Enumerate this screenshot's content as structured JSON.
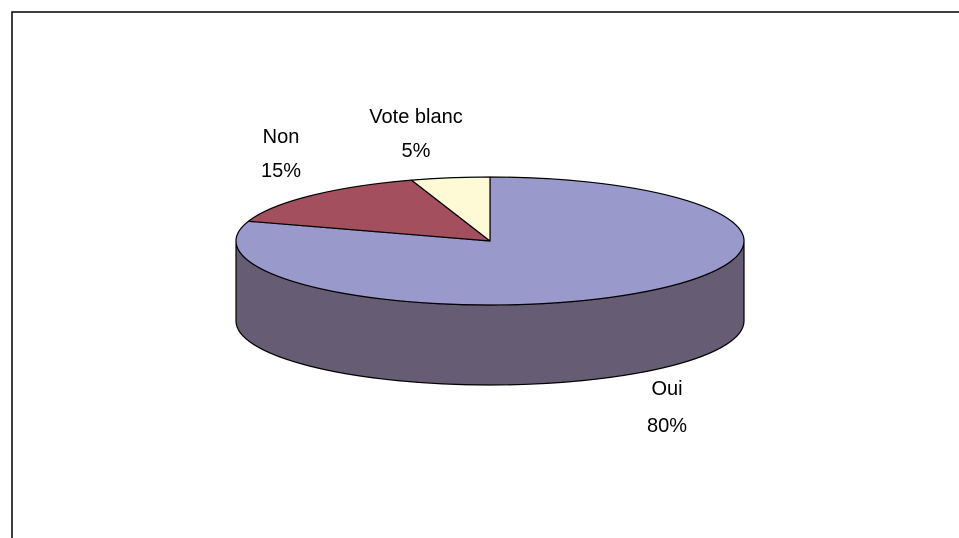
{
  "chart_data": {
    "type": "pie",
    "style": "3d",
    "title": "",
    "legend": "none",
    "data_labels": "category and percent",
    "slices": [
      {
        "label": "Oui",
        "value": 80,
        "percent_text": "80%",
        "color": "#9999CC",
        "side_color": "#665C73"
      },
      {
        "label": "Non",
        "value": 15,
        "percent_text": "15%",
        "color": "#A34F5E",
        "side_color": "#6B323D"
      },
      {
        "label": "Vote blanc",
        "value": 5,
        "percent_text": "5%",
        "color": "#FFFAD6",
        "side_color": "#B5B08F"
      }
    ]
  },
  "colors": {
    "outline": "#000000",
    "background": "#FFFFFF",
    "frame": "#000000"
  }
}
